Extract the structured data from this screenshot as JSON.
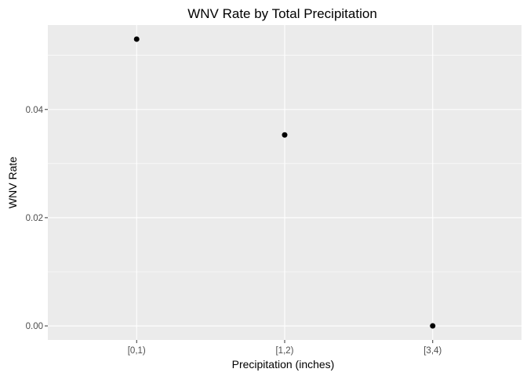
{
  "chart_data": {
    "type": "scatter",
    "title": "WNV Rate by Total Precipitation",
    "xlabel": "Precipitation (inches)",
    "ylabel": "WNV Rate",
    "categories": [
      "[0,1)",
      "[1,2)",
      "[3,4)"
    ],
    "values": [
      0.053,
      0.0353,
      0.0
    ],
    "ylim": [
      -0.0026,
      0.0556
    ],
    "yticks": [
      0.0,
      0.02,
      0.04
    ],
    "ytick_labels": [
      "0.00",
      "0.02",
      "0.04"
    ],
    "grid": true,
    "panel_color": "#ebebeb",
    "point_color": "#000000"
  }
}
